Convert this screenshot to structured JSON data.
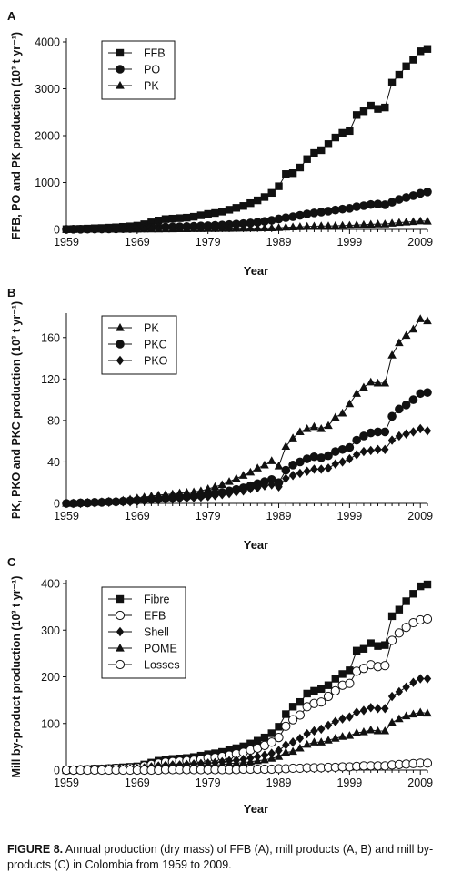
{
  "caption": {
    "label": "FIGURE 8.",
    "text": "Annual production (dry mass) of FFB (A), mill products (A, B) and mill by-products (C) in Colombia from 1959 to 2009."
  },
  "chart_data": [
    {
      "panel": "A",
      "type": "line",
      "xlabel": "Year",
      "ylabel": "FFB, PO and PK production (10³ t yr⁻¹)",
      "xlim": [
        1959,
        2010
      ],
      "ylim": [
        0,
        4000
      ],
      "xticks": [
        1959,
        1969,
        1979,
        1989,
        1999,
        2009
      ],
      "yticks": [
        0,
        1000,
        2000,
        3000,
        4000
      ],
      "x": [
        1959,
        1960,
        1961,
        1962,
        1963,
        1964,
        1965,
        1966,
        1967,
        1968,
        1969,
        1970,
        1971,
        1972,
        1973,
        1974,
        1975,
        1976,
        1977,
        1978,
        1979,
        1980,
        1981,
        1982,
        1983,
        1984,
        1985,
        1986,
        1987,
        1988,
        1989,
        1990,
        1991,
        1992,
        1993,
        1994,
        1995,
        1996,
        1997,
        1998,
        1999,
        2000,
        2001,
        2002,
        2003,
        2004,
        2005,
        2006,
        2007,
        2008,
        2009,
        2010
      ],
      "series": [
        {
          "name": "FFB",
          "marker": "square",
          "values": [
            5,
            8,
            12,
            18,
            25,
            30,
            38,
            45,
            55,
            65,
            80,
            110,
            150,
            190,
            220,
            230,
            240,
            250,
            270,
            300,
            330,
            350,
            380,
            420,
            460,
            500,
            560,
            620,
            690,
            780,
            920,
            1180,
            1200,
            1320,
            1500,
            1630,
            1690,
            1820,
            1960,
            2060,
            2100,
            2440,
            2520,
            2640,
            2570,
            2600,
            3130,
            3300,
            3480,
            3620,
            3800,
            3850
          ]
        },
        {
          "name": "PO",
          "marker": "circle",
          "values": [
            2,
            3,
            4,
            5,
            7,
            9,
            11,
            13,
            15,
            18,
            22,
            28,
            36,
            44,
            50,
            54,
            58,
            62,
            68,
            74,
            80,
            86,
            94,
            104,
            114,
            124,
            138,
            154,
            172,
            194,
            224,
            250,
            270,
            300,
            330,
            352,
            370,
            390,
            414,
            434,
            450,
            485,
            505,
            530,
            540,
            525,
            580,
            640,
            680,
            720,
            770,
            800
          ]
        },
        {
          "name": "PK",
          "marker": "triangle",
          "values": [
            0,
            0,
            1,
            1,
            1,
            2,
            2,
            3,
            3,
            4,
            5,
            6,
            7,
            8,
            9,
            10,
            11,
            12,
            13,
            14,
            16,
            17,
            18,
            20,
            22,
            24,
            26,
            28,
            30,
            32,
            35,
            45,
            50,
            55,
            62,
            68,
            72,
            74,
            78,
            82,
            86,
            95,
            100,
            108,
            114,
            114,
            130,
            145,
            155,
            165,
            178,
            175
          ]
        }
      ],
      "legend": "top-left"
    },
    {
      "panel": "B",
      "type": "line",
      "xlabel": "Year",
      "ylabel": "PK, PKO and PKC production (10³ t yr⁻¹)",
      "xlim": [
        1959,
        2010
      ],
      "ylim": [
        0,
        180
      ],
      "xticks": [
        1959,
        1969,
        1979,
        1989,
        1999,
        2009
      ],
      "yticks": [
        0,
        40,
        80,
        120,
        160
      ],
      "x": [
        1959,
        1960,
        1961,
        1962,
        1963,
        1964,
        1965,
        1966,
        1967,
        1968,
        1969,
        1970,
        1971,
        1972,
        1973,
        1974,
        1975,
        1976,
        1977,
        1978,
        1979,
        1980,
        1981,
        1982,
        1983,
        1984,
        1985,
        1986,
        1987,
        1988,
        1989,
        1990,
        1991,
        1992,
        1993,
        1994,
        1995,
        1996,
        1997,
        1998,
        1999,
        2000,
        2001,
        2002,
        2003,
        2004,
        2005,
        2006,
        2007,
        2008,
        2009,
        2010
      ],
      "series": [
        {
          "name": "PK",
          "marker": "triangle",
          "values": [
            0,
            0,
            0.5,
            1,
            1,
            1.5,
            2,
            2.5,
            3,
            4,
            5,
            6,
            7,
            8,
            8.5,
            9,
            10,
            10.5,
            11,
            12,
            14,
            16,
            18,
            21,
            24,
            27,
            30,
            34,
            37,
            41,
            36,
            55,
            63,
            69,
            72,
            74,
            72,
            75,
            83,
            87,
            96,
            106,
            112,
            117,
            116,
            116,
            143,
            155,
            162,
            168,
            178,
            176
          ]
        },
        {
          "name": "PKC",
          "marker": "circle",
          "values": [
            0,
            0,
            0.5,
            0.5,
            1,
            1,
            1.5,
            1.5,
            2,
            2.5,
            3,
            3.5,
            4,
            4.5,
            5,
            5.5,
            6,
            6.5,
            7,
            7.5,
            8.5,
            9.5,
            10.5,
            12,
            13.5,
            15,
            17,
            19,
            21,
            23,
            20,
            32,
            37,
            40,
            43,
            45,
            44,
            46,
            50,
            52,
            54,
            61,
            65,
            68,
            69,
            69,
            84,
            91,
            95,
            100,
            106,
            107
          ]
        },
        {
          "name": "PKO",
          "marker": "diamond",
          "values": [
            0,
            0,
            0,
            0.5,
            0.5,
            1,
            1,
            1,
            1.5,
            1.5,
            2,
            2.5,
            3,
            3,
            3.5,
            4,
            4.5,
            5,
            5.5,
            6,
            6.5,
            7.5,
            8.5,
            9.5,
            11,
            12,
            14,
            15,
            17,
            18,
            16,
            24,
            27,
            29,
            31,
            33,
            33,
            34,
            38,
            40,
            43,
            47,
            50,
            51,
            52,
            52,
            61,
            65,
            67,
            69,
            72,
            70
          ]
        }
      ],
      "legend": "top-left"
    },
    {
      "panel": "C",
      "type": "line",
      "xlabel": "Year",
      "ylabel": "Mill by-product production (10³ t yr⁻¹)",
      "xlim": [
        1959,
        2010
      ],
      "ylim": [
        0,
        400
      ],
      "xticks": [
        1959,
        1969,
        1979,
        1989,
        1999,
        2009
      ],
      "yticks": [
        0,
        100,
        200,
        300,
        400
      ],
      "x": [
        1959,
        1960,
        1961,
        1962,
        1963,
        1964,
        1965,
        1966,
        1967,
        1968,
        1969,
        1970,
        1971,
        1972,
        1973,
        1974,
        1975,
        1976,
        1977,
        1978,
        1979,
        1980,
        1981,
        1982,
        1983,
        1984,
        1985,
        1986,
        1987,
        1988,
        1989,
        1990,
        1991,
        1992,
        1993,
        1994,
        1995,
        1996,
        1997,
        1998,
        1999,
        2000,
        2001,
        2002,
        2003,
        2004,
        2005,
        2006,
        2007,
        2008,
        2009,
        2010
      ],
      "series": [
        {
          "name": "Fibre",
          "marker": "square",
          "values": [
            0,
            1,
            1,
            2,
            3,
            3,
            4,
            5,
            6,
            7,
            8,
            12,
            16,
            20,
            23,
            24,
            25,
            26,
            28,
            31,
            34,
            36,
            39,
            43,
            47,
            51,
            57,
            63,
            70,
            79,
            93,
            120,
            136,
            146,
            164,
            170,
            174,
            182,
            196,
            206,
            214,
            256,
            260,
            272,
            266,
            268,
            330,
            344,
            362,
            378,
            394,
            398
          ]
        },
        {
          "name": "EFB",
          "marker": "open-circle",
          "values": [
            0,
            0,
            1,
            1,
            2,
            2,
            3,
            4,
            4,
            5,
            6,
            9,
            12,
            15,
            17,
            18,
            19,
            20,
            21,
            23,
            26,
            27,
            29,
            32,
            35,
            38,
            43,
            47,
            53,
            60,
            70,
            94,
            108,
            118,
            136,
            143,
            146,
            158,
            170,
            182,
            186,
            212,
            218,
            226,
            222,
            224,
            278,
            294,
            306,
            316,
            322,
            324
          ]
        },
        {
          "name": "Shell",
          "marker": "diamond",
          "values": [
            0,
            0,
            1,
            1,
            1,
            2,
            2,
            2,
            3,
            3,
            4,
            5,
            7,
            9,
            10,
            11,
            11,
            12,
            13,
            14,
            15,
            16,
            18,
            20,
            21,
            23,
            26,
            29,
            32,
            36,
            42,
            54,
            60,
            68,
            78,
            84,
            88,
            96,
            104,
            110,
            114,
            124,
            128,
            134,
            132,
            132,
            158,
            168,
            178,
            188,
            196,
            196
          ]
        },
        {
          "name": "POME",
          "marker": "triangle",
          "values": [
            0,
            0,
            0,
            1,
            1,
            1,
            1,
            2,
            2,
            2,
            3,
            4,
            5,
            6,
            7,
            7,
            8,
            8,
            9,
            10,
            11,
            11,
            12,
            14,
            15,
            16,
            18,
            20,
            22,
            25,
            29,
            38,
            40,
            47,
            55,
            60,
            60,
            64,
            68,
            72,
            74,
            80,
            82,
            86,
            84,
            84,
            102,
            110,
            116,
            120,
            124,
            122
          ]
        },
        {
          "name": "Losses",
          "marker": "open-circle",
          "values": [
            0,
            0,
            0,
            0,
            0,
            0,
            0,
            0,
            0,
            0,
            0,
            0,
            0,
            0,
            1,
            1,
            1,
            1,
            1,
            1,
            1,
            1,
            1,
            1,
            1,
            2,
            2,
            2,
            2,
            2,
            3,
            3,
            4,
            4,
            5,
            5,
            5,
            6,
            6,
            7,
            7,
            8,
            9,
            9,
            9,
            9,
            11,
            12,
            13,
            14,
            15,
            15
          ]
        }
      ],
      "legend": "top-left"
    }
  ]
}
